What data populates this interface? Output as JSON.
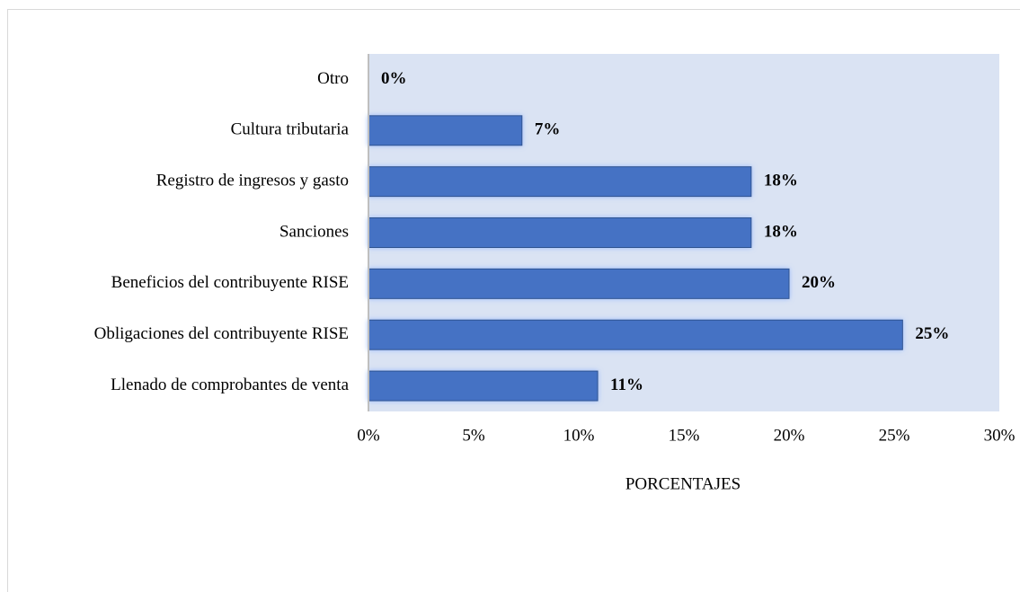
{
  "chart_data": {
    "type": "bar",
    "orientation": "horizontal",
    "categories": [
      "Otro",
      "Cultura tributaria",
      "Registro de ingresos y gasto",
      "Sanciones",
      "Beneficios del contribuyente RISE",
      "Obligaciones del contribuyente RISE",
      "Llenado de comprobantes de venta"
    ],
    "values": [
      0,
      7.3,
      18.2,
      18.2,
      20,
      25.4,
      10.9
    ],
    "value_labels": [
      "0%",
      "7%",
      "18%",
      "18%",
      "20%",
      "25%",
      "11%"
    ],
    "color": "#4472c4",
    "plot_background": "#dae3f3",
    "xlabel": "PORCENTAJES",
    "xlim": [
      0,
      30
    ],
    "xticks": [
      {
        "value": 0,
        "label": "0%"
      },
      {
        "value": 5,
        "label": "5%"
      },
      {
        "value": 10,
        "label": "10%"
      },
      {
        "value": 15,
        "label": "15%"
      },
      {
        "value": 20,
        "label": "20%"
      },
      {
        "value": 25,
        "label": "25%"
      },
      {
        "value": 30,
        "label": "30%"
      }
    ]
  }
}
